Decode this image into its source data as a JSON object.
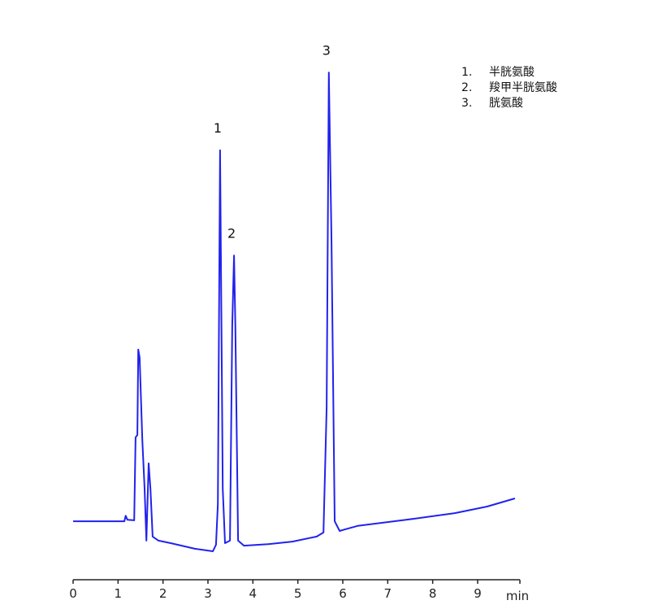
{
  "chart_data": {
    "type": "line",
    "title": "",
    "xlabel": "min",
    "ylabel": "",
    "xlim": [
      0,
      10
    ],
    "ylim": [
      0,
      100
    ],
    "x_ticks": [
      "0",
      "1",
      "2",
      "3",
      "4",
      "5",
      "6",
      "7",
      "8",
      "9"
    ],
    "grid": false,
    "line_color": "#2222ee",
    "series": [
      {
        "x": [
          0,
          1.14,
          1.17,
          1.21,
          1.36,
          1.39,
          1.43,
          1.45,
          1.48,
          1.54,
          1.59,
          1.63,
          1.68,
          1.72,
          1.77,
          1.9,
          2.17,
          2.71,
          3.11,
          3.18,
          3.22,
          3.27,
          3.33,
          3.38,
          3.49,
          3.54,
          3.58,
          3.61,
          3.67,
          3.8,
          4.34,
          4.88,
          5.42,
          5.57,
          5.64,
          5.69,
          5.75,
          5.82,
          5.93,
          6.05,
          6.33,
          7.41,
          8.49,
          9.21,
          9.83
        ],
        "y": [
          11.5,
          11.5,
          12.6,
          11.8,
          11.7,
          28,
          28.5,
          45.3,
          43.7,
          27.5,
          17.9,
          7.7,
          22.9,
          17.9,
          8.5,
          7.7,
          7.2,
          6.1,
          5.6,
          6.9,
          14.9,
          84.5,
          17.9,
          7.2,
          7.7,
          50.1,
          63.8,
          50.1,
          7.7,
          6.7,
          7.0,
          7.5,
          8.5,
          9.3,
          33.9,
          99.8,
          66.4,
          11.5,
          9.6,
          9.9,
          10.6,
          11.8,
          13.1,
          14.4,
          16.0
        ]
      }
    ],
    "peak_labels": [
      {
        "label": "1",
        "x": 3.27,
        "y": 84.5
      },
      {
        "label": "2",
        "x": 3.58,
        "y": 63.8
      },
      {
        "label": "3",
        "x": 5.69,
        "y": 99.8
      }
    ],
    "legend": {
      "placement": "top-right",
      "entries": [
        {
          "num": "1.",
          "name": "半胱氨酸"
        },
        {
          "num": "2.",
          "name": "羧甲半胱氨酸"
        },
        {
          "num": "3.",
          "name": "胱氨酸"
        }
      ]
    }
  }
}
